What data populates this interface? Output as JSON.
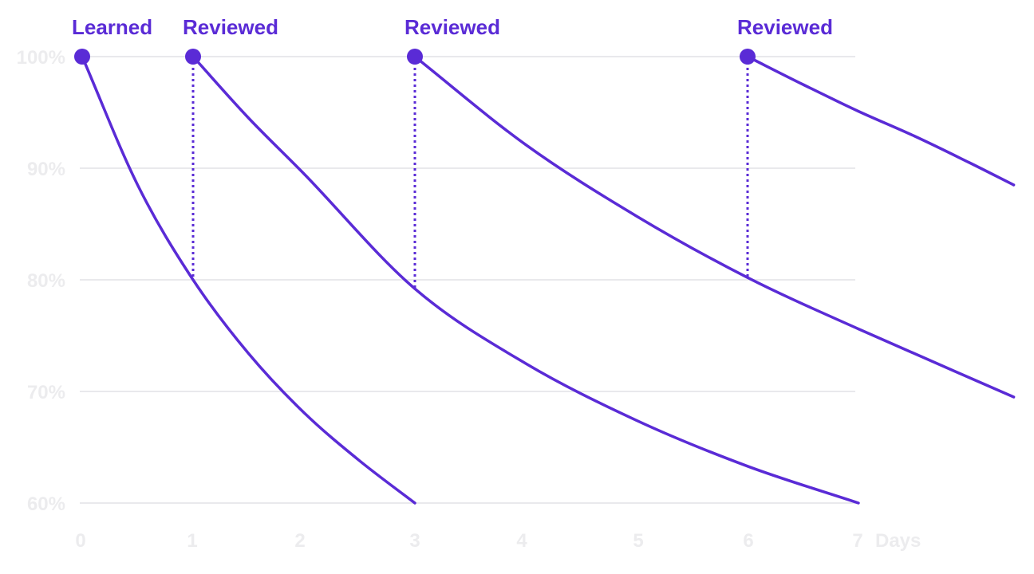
{
  "chart_data": {
    "type": "line",
    "title": "",
    "xlabel": "Days",
    "ylabel": "",
    "xlim": [
      0,
      8.4
    ],
    "ylim": [
      60,
      100
    ],
    "x_ticks": [
      "0",
      "1",
      "2",
      "3",
      "4",
      "5",
      "6",
      "7"
    ],
    "y_ticks": [
      "100%",
      "90%",
      "80%",
      "70%",
      "60%"
    ],
    "y_tick_values": [
      100,
      90,
      80,
      70,
      60
    ],
    "grid": true,
    "legend": "none",
    "events": [
      {
        "label": "Learned",
        "day": 0,
        "retention": 100
      },
      {
        "label": "Reviewed",
        "day": 1,
        "retention": 100,
        "drop_from": 80
      },
      {
        "label": "Reviewed",
        "day": 3,
        "retention": 100,
        "drop_from": 79
      },
      {
        "label": "Reviewed",
        "day": 6,
        "retention": 100,
        "drop_from": 80
      }
    ],
    "series": [
      {
        "x": [
          0,
          0.5,
          1,
          1.5,
          2,
          2.5,
          3
        ],
        "y": [
          100,
          88.5,
          80,
          73.4,
          68.1,
          63.8,
          60
        ]
      },
      {
        "x": [
          1,
          1.5,
          2,
          3,
          4,
          5,
          6,
          7
        ],
        "y": [
          100,
          94.5,
          89.5,
          79.2,
          72.5,
          67.4,
          63.3,
          60
        ]
      },
      {
        "x": [
          3,
          4,
          5,
          6,
          7,
          8.4
        ],
        "y": [
          100,
          92.1,
          85.7,
          80.2,
          75.6,
          69.5
        ]
      },
      {
        "x": [
          6,
          6.5,
          7,
          7.5,
          8,
          8.4
        ],
        "y": [
          100,
          97.5,
          95.1,
          92.9,
          90.5,
          88.5
        ]
      }
    ]
  },
  "colors": {
    "accent": "#5a2bd6",
    "grid": "#e9e9ec",
    "tick_text": "#ececee"
  }
}
